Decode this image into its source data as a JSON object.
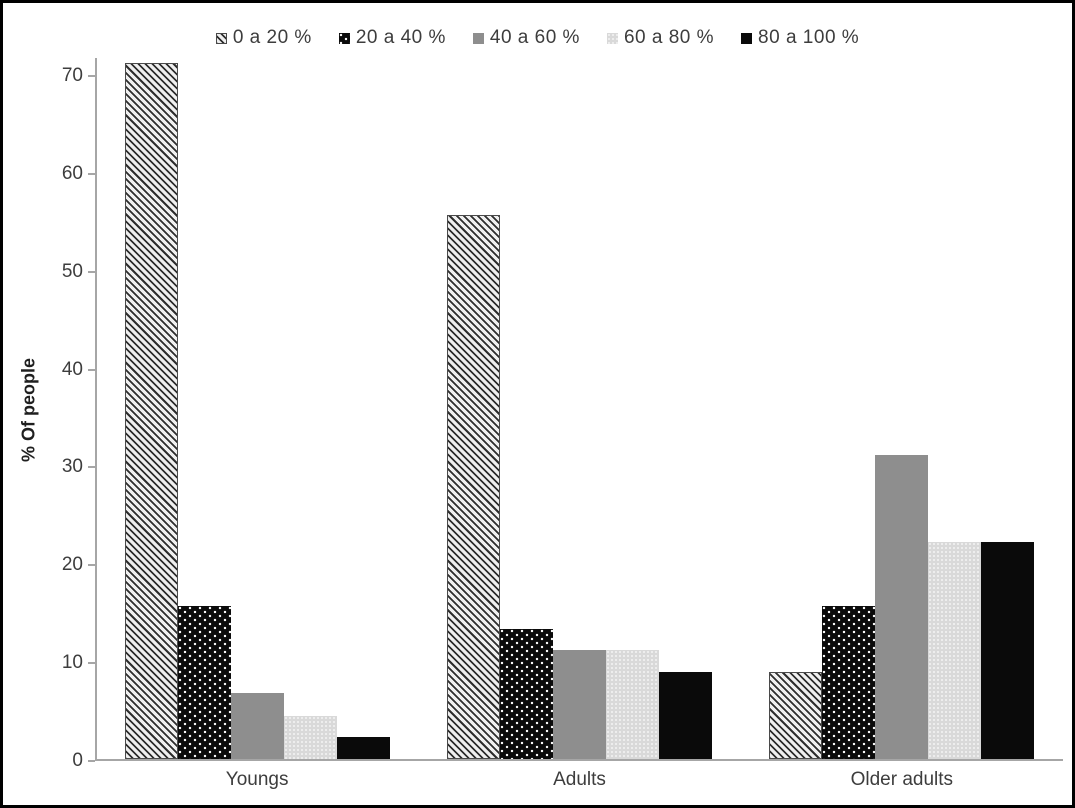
{
  "chart_data": {
    "type": "bar",
    "title": "",
    "xlabel": "",
    "ylabel": "% Of people",
    "categories": [
      "Youngs",
      "Adults",
      "Older adults"
    ],
    "series": [
      {
        "name": "0 a 20 %",
        "pattern": "hatch",
        "values": [
          71.1,
          55.6,
          8.9
        ]
      },
      {
        "name": "20 a 40 %",
        "pattern": "dots",
        "values": [
          15.6,
          13.3,
          15.6
        ]
      },
      {
        "name": "40 a 60 %",
        "pattern": "gray",
        "values": [
          6.7,
          11.1,
          31.1
        ]
      },
      {
        "name": "60 a 80 %",
        "pattern": "lightgray",
        "values": [
          4.4,
          11.1,
          22.2
        ]
      },
      {
        "name": "80 a 100 %",
        "pattern": "black",
        "values": [
          2.2,
          8.9,
          22.2
        ]
      }
    ],
    "y_ticks": [
      0,
      10,
      20,
      30,
      40,
      50,
      60,
      70
    ],
    "ylim": [
      0,
      71.8
    ],
    "legend_position": "top",
    "grid": false,
    "colors": {
      "hatch_dark": "#2e2e2e",
      "gray": "#8e8e8e",
      "lightgray": "#d9d9d9",
      "black": "#0a0a0a",
      "axis_line": "#a6a6a6",
      "text": "#3d3d3d"
    }
  }
}
